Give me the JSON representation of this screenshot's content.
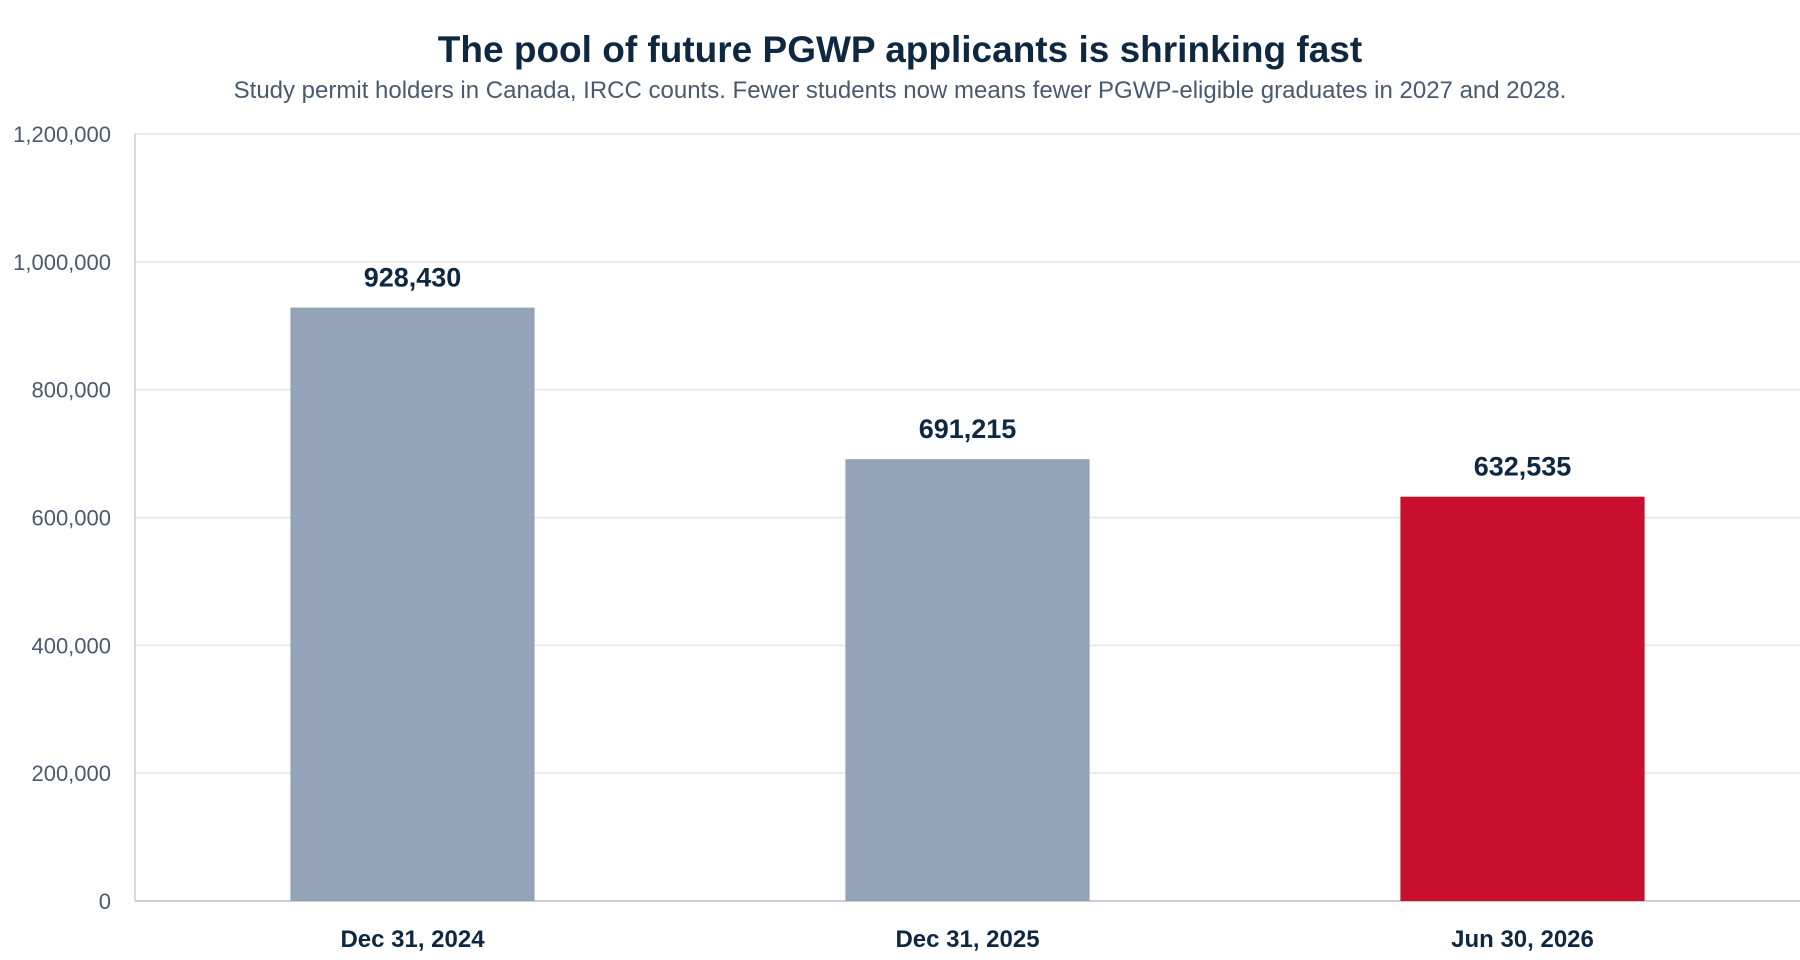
{
  "chart_data": {
    "type": "bar",
    "title": "The pool of future PGWP applicants is shrinking fast",
    "subtitle": "Study permit holders in Canada, IRCC counts. Fewer students now means fewer PGWP-eligible graduates in 2027 and 2028.",
    "xlabel": "",
    "ylabel": "",
    "categories": [
      "Dec 31, 2024",
      "Dec 31, 2025",
      "Jun 30, 2026"
    ],
    "values": [
      928430,
      691215,
      632535
    ],
    "value_labels": [
      "928,430",
      "691,215",
      "632,535"
    ],
    "bar_colors": [
      "#94a3b8",
      "#94a3b8",
      "#c8102e"
    ],
    "ylim": [
      0,
      1200000
    ],
    "yticks": [
      0,
      200000,
      400000,
      600000,
      800000,
      1000000,
      1200000
    ],
    "ytick_labels": [
      "0",
      "200,000",
      "400,000",
      "600,000",
      "800,000",
      "1,000,000",
      "1,200,000"
    ],
    "grid": true,
    "legend": "none"
  },
  "colors": {
    "text_dark": "#0f2841",
    "text_muted": "#4a5a6e",
    "grid": "#e3e5ee",
    "axis": "#c9cdd8"
  }
}
